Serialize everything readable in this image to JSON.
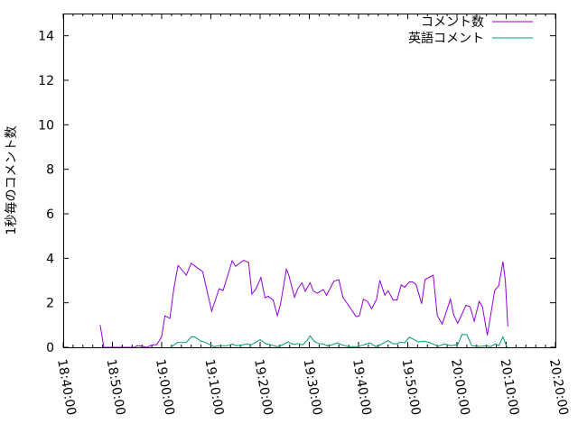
{
  "chart_data": {
    "type": "line",
    "title": "",
    "xlabel": "",
    "ylabel": "1秒毎のコメント数",
    "xlim": [
      "18:40:00",
      "20:20:00"
    ],
    "ylim": [
      0,
      15
    ],
    "x_ticks": [
      "18:40:00",
      "18:50:00",
      "19:00:00",
      "19:10:00",
      "19:20:00",
      "19:30:00",
      "19:40:00",
      "19:50:00",
      "20:00:00",
      "20:10:00",
      "20:20:00"
    ],
    "y_ticks": [
      "0",
      "2",
      "4",
      "6",
      "8",
      "10",
      "12",
      "14"
    ],
    "grid": false,
    "legend_position": "top-right",
    "series": [
      {
        "name": "コメント数",
        "color": "#9400d3",
        "points": [
          [
            "18:47:30",
            1.0
          ],
          [
            "18:48:15",
            0
          ],
          [
            "18:52:00",
            0
          ],
          [
            "18:54:30",
            0
          ],
          [
            "18:55:00",
            0.07
          ],
          [
            "18:56:00",
            0.05
          ],
          [
            "18:57:00",
            0
          ],
          [
            "18:58:00",
            0.1
          ],
          [
            "18:59:00",
            0.12
          ],
          [
            "19:00:00",
            0.47
          ],
          [
            "19:00:40",
            1.42
          ],
          [
            "19:01:40",
            1.3
          ],
          [
            "19:02:30",
            2.67
          ],
          [
            "19:03:20",
            3.68
          ],
          [
            "19:05:00",
            3.24
          ],
          [
            "19:06:00",
            3.78
          ],
          [
            "19:07:10",
            3.58
          ],
          [
            "19:08:20",
            3.4
          ],
          [
            "19:10:10",
            1.62
          ],
          [
            "19:11:40",
            2.63
          ],
          [
            "19:12:30",
            2.56
          ],
          [
            "19:14:20",
            3.89
          ],
          [
            "19:15:00",
            3.64
          ],
          [
            "19:16:40",
            3.91
          ],
          [
            "19:17:40",
            3.81
          ],
          [
            "19:18:20",
            2.39
          ],
          [
            "19:19:10",
            2.63
          ],
          [
            "19:20:10",
            3.14
          ],
          [
            "19:21:00",
            2.23
          ],
          [
            "19:21:40",
            2.29
          ],
          [
            "19:22:40",
            2.12
          ],
          [
            "19:23:30",
            1.42
          ],
          [
            "19:24:10",
            1.96
          ],
          [
            "19:25:20",
            3.51
          ],
          [
            "19:25:50",
            3.24
          ],
          [
            "19:27:00",
            2.25
          ],
          [
            "19:27:40",
            2.63
          ],
          [
            "19:28:30",
            2.9
          ],
          [
            "19:29:10",
            2.52
          ],
          [
            "19:30:10",
            2.9
          ],
          [
            "19:30:50",
            2.52
          ],
          [
            "19:31:40",
            2.43
          ],
          [
            "19:32:50",
            2.6
          ],
          [
            "19:33:30",
            2.34
          ],
          [
            "19:35:00",
            2.97
          ],
          [
            "19:36:00",
            3.04
          ],
          [
            "19:36:50",
            2.25
          ],
          [
            "19:38:10",
            1.82
          ],
          [
            "19:39:30",
            1.38
          ],
          [
            "19:40:10",
            1.42
          ],
          [
            "19:41:00",
            2.16
          ],
          [
            "19:41:50",
            2.06
          ],
          [
            "19:42:40",
            1.73
          ],
          [
            "19:43:40",
            2.16
          ],
          [
            "19:44:20",
            3.01
          ],
          [
            "19:45:20",
            2.34
          ],
          [
            "19:46:00",
            2.54
          ],
          [
            "19:47:00",
            2.13
          ],
          [
            "19:47:50",
            2.13
          ],
          [
            "19:48:40",
            2.81
          ],
          [
            "19:49:20",
            2.7
          ],
          [
            "19:50:20",
            2.94
          ],
          [
            "19:51:00",
            2.94
          ],
          [
            "19:51:40",
            2.83
          ],
          [
            "19:52:50",
            1.96
          ],
          [
            "19:53:30",
            3.04
          ],
          [
            "19:55:10",
            3.24
          ],
          [
            "19:56:00",
            1.42
          ],
          [
            "19:57:00",
            1.04
          ],
          [
            "19:58:40",
            2.16
          ],
          [
            "19:59:20",
            1.45
          ],
          [
            "20:00:10",
            1.08
          ],
          [
            "20:01:50",
            1.89
          ],
          [
            "20:02:40",
            1.82
          ],
          [
            "20:03:30",
            1.17
          ],
          [
            "20:04:30",
            2.06
          ],
          [
            "20:05:10",
            1.82
          ],
          [
            "20:06:10",
            0.54
          ],
          [
            "20:07:40",
            2.56
          ],
          [
            "20:08:30",
            2.77
          ],
          [
            "20:09:20",
            3.85
          ],
          [
            "20:09:50",
            2.97
          ],
          [
            "20:10:20",
            0.94
          ]
        ]
      },
      {
        "name": "英語コメント",
        "color": "#009e73",
        "points": [
          [
            "19:01:50",
            0
          ],
          [
            "19:03:10",
            0.21
          ],
          [
            "19:05:00",
            0.22
          ],
          [
            "19:06:00",
            0.47
          ],
          [
            "19:06:40",
            0.47
          ],
          [
            "19:08:00",
            0.27
          ],
          [
            "19:08:50",
            0.23
          ],
          [
            "19:10:40",
            0.03
          ],
          [
            "19:11:30",
            0.07
          ],
          [
            "19:13:20",
            0.07
          ],
          [
            "19:14:20",
            0.15
          ],
          [
            "19:15:10",
            0.07
          ],
          [
            "19:16:20",
            0.11
          ],
          [
            "19:17:20",
            0.15
          ],
          [
            "19:18:10",
            0.11
          ],
          [
            "19:20:00",
            0.34
          ],
          [
            "19:21:10",
            0.15
          ],
          [
            "19:22:00",
            0.12
          ],
          [
            "19:23:30",
            0.03
          ],
          [
            "19:24:40",
            0.12
          ],
          [
            "19:25:40",
            0.24
          ],
          [
            "19:26:50",
            0.12
          ],
          [
            "19:27:40",
            0.17
          ],
          [
            "19:28:40",
            0.11
          ],
          [
            "19:29:30",
            0.3
          ],
          [
            "19:30:10",
            0.51
          ],
          [
            "19:31:00",
            0.27
          ],
          [
            "19:32:00",
            0.16
          ],
          [
            "19:32:50",
            0.16
          ],
          [
            "19:33:30",
            0.07
          ],
          [
            "19:34:30",
            0.1
          ],
          [
            "19:35:40",
            0.2
          ],
          [
            "19:36:30",
            0.12
          ],
          [
            "19:37:50",
            0.03
          ],
          [
            "19:39:40",
            0.03
          ],
          [
            "19:41:00",
            0.11
          ],
          [
            "19:42:20",
            0.2
          ],
          [
            "19:43:30",
            0.03
          ],
          [
            "19:44:30",
            0.12
          ],
          [
            "19:46:00",
            0.3
          ],
          [
            "19:47:00",
            0.16
          ],
          [
            "19:47:50",
            0.16
          ],
          [
            "19:48:30",
            0.24
          ],
          [
            "19:49:20",
            0.2
          ],
          [
            "19:50:20",
            0.45
          ],
          [
            "19:51:20",
            0.34
          ],
          [
            "19:52:10",
            0.24
          ],
          [
            "19:53:20",
            0.27
          ],
          [
            "19:54:40",
            0.2
          ],
          [
            "19:56:10",
            0.04
          ],
          [
            "19:57:30",
            0.16
          ],
          [
            "19:58:40",
            0.07
          ],
          [
            "20:00:10",
            0.12
          ],
          [
            "20:01:00",
            0.57
          ],
          [
            "20:02:00",
            0.57
          ],
          [
            "20:03:00",
            0.07
          ],
          [
            "20:04:40",
            0.04
          ],
          [
            "20:06:00",
            0.07
          ],
          [
            "20:06:50",
            0.03
          ],
          [
            "20:07:50",
            0.16
          ],
          [
            "20:08:30",
            0.07
          ],
          [
            "20:09:20",
            0.47
          ],
          [
            "20:10:10",
            0
          ]
        ]
      }
    ]
  }
}
